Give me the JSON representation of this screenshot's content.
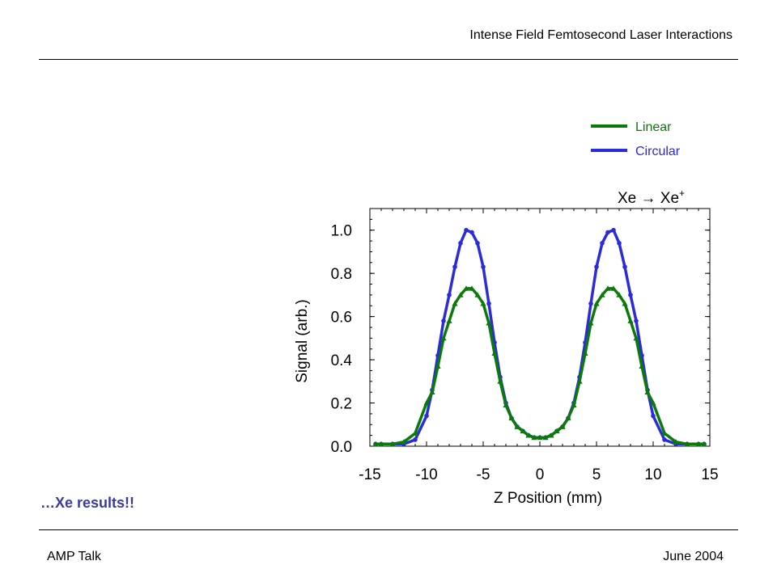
{
  "header": {
    "title": "Intense Field Femtosecond Laser Interactions"
  },
  "footer": {
    "left": "AMP Talk",
    "right": "June 2004"
  },
  "caption": "…Xe results!!",
  "colors": {
    "linear": "#0a7a0a",
    "circular": "#2b2bd9",
    "caption": "#3b3b9e"
  },
  "chart_data": {
    "type": "line",
    "title": "",
    "annotation": "Xe → Xe+",
    "xlabel": "Z Position (mm)",
    "ylabel": "Signal (arb.)",
    "xlim": [
      -15,
      15
    ],
    "ylim": [
      0,
      1.1
    ],
    "xticks": [
      -15,
      -10,
      -5,
      0,
      5,
      10,
      15
    ],
    "yticks": [
      0.0,
      0.2,
      0.4,
      0.6,
      0.8,
      1.0
    ],
    "xtick_labels": [
      "-15",
      "-10",
      "-5",
      "0",
      "5",
      "10",
      "15"
    ],
    "ytick_labels": [
      "0.0",
      "0.2",
      "0.4",
      "0.6",
      "0.8",
      "1.0"
    ],
    "legend_position": "top-right",
    "x": [
      -14.5,
      -14,
      -13,
      -12,
      -11,
      -10,
      -9.5,
      -9,
      -8.5,
      -8,
      -7.5,
      -7,
      -6.5,
      -6,
      -5.5,
      -5,
      -4.5,
      -4,
      -3.5,
      -3,
      -2.5,
      -2,
      -1.5,
      -1,
      -0.5,
      0,
      0.5,
      1,
      1.5,
      2,
      2.5,
      3,
      3.5,
      4,
      4.5,
      5,
      5.5,
      6,
      6.5,
      7,
      7.5,
      8,
      8.5,
      9,
      9.5,
      10,
      11,
      12,
      13,
      14,
      14.5
    ],
    "series": [
      {
        "name": "Linear",
        "marker": "triangle",
        "values": [
          0.01,
          0.01,
          0.01,
          0.02,
          0.06,
          0.2,
          0.25,
          0.37,
          0.5,
          0.58,
          0.66,
          0.7,
          0.73,
          0.73,
          0.7,
          0.66,
          0.57,
          0.43,
          0.3,
          0.19,
          0.13,
          0.09,
          0.07,
          0.05,
          0.04,
          0.04,
          0.04,
          0.05,
          0.07,
          0.09,
          0.13,
          0.19,
          0.3,
          0.43,
          0.57,
          0.66,
          0.7,
          0.73,
          0.73,
          0.7,
          0.66,
          0.58,
          0.5,
          0.37,
          0.25,
          0.2,
          0.06,
          0.02,
          0.01,
          0.01,
          0.01
        ]
      },
      {
        "name": "Circular",
        "marker": "circle",
        "values": [
          0.01,
          0.01,
          0.01,
          0.01,
          0.03,
          0.14,
          0.26,
          0.42,
          0.58,
          0.7,
          0.83,
          0.94,
          1.0,
          0.99,
          0.94,
          0.83,
          0.66,
          0.48,
          0.32,
          0.2,
          0.13,
          0.09,
          0.07,
          0.05,
          0.04,
          0.04,
          0.04,
          0.05,
          0.07,
          0.09,
          0.13,
          0.2,
          0.32,
          0.48,
          0.66,
          0.83,
          0.94,
          0.99,
          1.0,
          0.94,
          0.83,
          0.7,
          0.58,
          0.42,
          0.26,
          0.14,
          0.03,
          0.01,
          0.01,
          0.01,
          0.01
        ]
      }
    ]
  }
}
